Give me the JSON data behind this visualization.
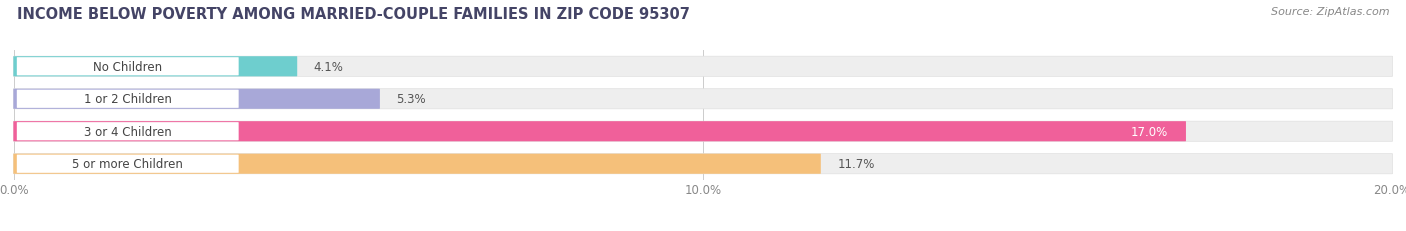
{
  "title": "INCOME BELOW POVERTY AMONG MARRIED-COUPLE FAMILIES IN ZIP CODE 95307",
  "source": "Source: ZipAtlas.com",
  "categories": [
    "No Children",
    "1 or 2 Children",
    "3 or 4 Children",
    "5 or more Children"
  ],
  "values": [
    4.1,
    5.3,
    17.0,
    11.7
  ],
  "bar_colors": [
    "#6ecece",
    "#a8a8d8",
    "#f0609a",
    "#f5c07a"
  ],
  "bar_bg_color": "#eeeeee",
  "xlim": [
    0,
    20.0
  ],
  "xticks": [
    0.0,
    10.0,
    20.0
  ],
  "xtick_labels": [
    "0.0%",
    "10.0%",
    "20.0%"
  ],
  "title_fontsize": 10.5,
  "label_fontsize": 8.5,
  "value_fontsize": 8.5,
  "source_fontsize": 8,
  "bar_height": 0.62,
  "background_color": "#ffffff",
  "value_label_colors": [
    "#555555",
    "#555555",
    "#ffffff",
    "#555555"
  ],
  "value_label_inside": [
    false,
    false,
    true,
    false
  ]
}
